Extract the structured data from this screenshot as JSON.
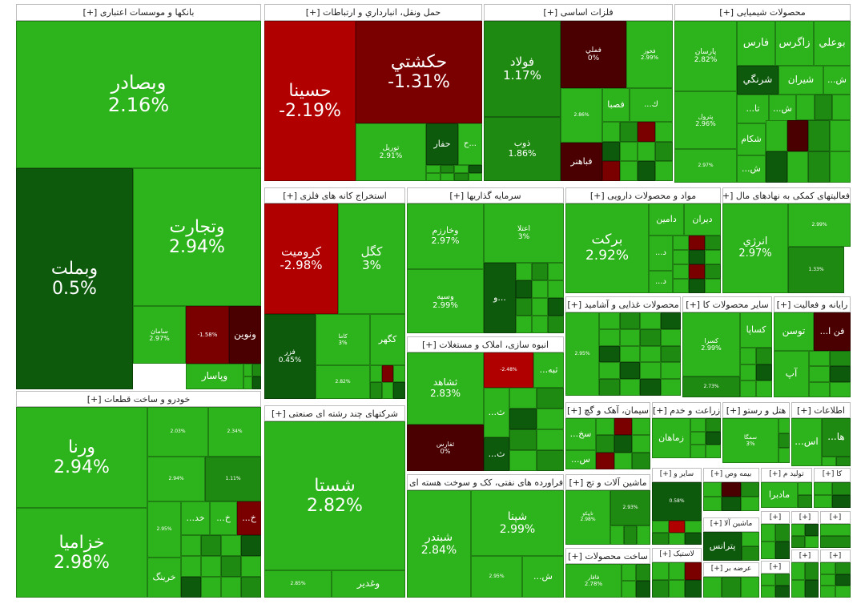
{
  "chart_data": {
    "type": "treemap",
    "title": "",
    "colors": {
      "up_strong": "#2db31b",
      "up_mid": "#1f8a12",
      "up_low": "#0d5a0d",
      "flat": "#0b4a0b",
      "down_mid": "#7a0000",
      "down_strong": "#b00000",
      "darkred": "#4a0000"
    },
    "sectors": [
      {
        "name": "بانکها و موسسات اعتباری [+]",
        "stocks": [
          {
            "name": "وبصادر",
            "change": "2.16%"
          },
          {
            "name": "وتجارت",
            "change": "2.94%"
          },
          {
            "name": "وبملت",
            "change": "0.5%"
          },
          {
            "name": "سامان",
            "change": "2.97%"
          },
          {
            "name": "ونوین",
            "change": ""
          },
          {
            "name": "",
            "change": "-1.58%"
          },
          {
            "name": "وپاسار",
            "change": ""
          }
        ]
      },
      {
        "name": "حمل ونقل، انبارداري و ارتباطات [+]",
        "stocks": [
          {
            "name": "حسينا",
            "change": "-2.19%"
          },
          {
            "name": "حكشتي",
            "change": "-1.31%"
          },
          {
            "name": "توريل",
            "change": "2.91%"
          },
          {
            "name": "حفار",
            "change": ""
          },
          {
            "name": "ح...",
            "change": ""
          }
        ]
      },
      {
        "name": "فلزات اساسی [+]",
        "stocks": [
          {
            "name": "فولاد",
            "change": "1.17%"
          },
          {
            "name": "فملي",
            "change": "0%"
          },
          {
            "name": "فخوز",
            "change": "2.99%"
          },
          {
            "name": "ذوب",
            "change": "1.86%"
          },
          {
            "name": "",
            "change": "2.86%"
          },
          {
            "name": "فصبا",
            "change": ""
          },
          {
            "name": "...ك",
            "change": ""
          },
          {
            "name": "فباهنر",
            "change": ""
          }
        ]
      },
      {
        "name": "محصولات شیمیایی [+]",
        "stocks": [
          {
            "name": "پارسان",
            "change": "2.82%"
          },
          {
            "name": "فارس",
            "change": ""
          },
          {
            "name": "زاگرس",
            "change": ""
          },
          {
            "name": "بوعلي",
            "change": ""
          },
          {
            "name": "شرنگي",
            "change": ""
          },
          {
            "name": "شيران",
            "change": ""
          },
          {
            "name": "...ش",
            "change": ""
          },
          {
            "name": "پترول",
            "change": "2.96%"
          },
          {
            "name": "...تا",
            "change": ""
          },
          {
            "name": "...ش",
            "change": ""
          },
          {
            "name": "شكام",
            "change": ""
          },
          {
            "name": "",
            "change": "2.97%"
          },
          {
            "name": "...ش",
            "change": ""
          }
        ]
      },
      {
        "name": "استخراج کانه های فلزی [+]",
        "stocks": [
          {
            "name": "كروميت",
            "change": "-2.98%"
          },
          {
            "name": "كگل",
            "change": "3%"
          },
          {
            "name": "فزر",
            "change": "0.45%"
          },
          {
            "name": "كاما",
            "change": "3%"
          },
          {
            "name": "كگهر",
            "change": ""
          },
          {
            "name": "",
            "change": "2.82%"
          }
        ]
      },
      {
        "name": "سرمایه گذاریها [+]",
        "stocks": [
          {
            "name": "وخارزم",
            "change": "2.97%"
          },
          {
            "name": "اعتلا",
            "change": "3%"
          },
          {
            "name": "وسپه",
            "change": "2.99%"
          },
          {
            "name": "و...",
            "change": ""
          }
        ]
      },
      {
        "name": "مواد و محصولات دارویی [+]",
        "stocks": [
          {
            "name": "بركت",
            "change": "2.92%"
          },
          {
            "name": "دامين",
            "change": ""
          },
          {
            "name": "ديران",
            "change": ""
          },
          {
            "name": "...د",
            "change": ""
          },
          {
            "name": "...د",
            "change": ""
          }
        ]
      },
      {
        "name": "فعالیتهای کمکی به نهادهای مال [+]",
        "stocks": [
          {
            "name": "انرژي",
            "change": "2.97%"
          },
          {
            "name": "",
            "change": "2.99%"
          },
          {
            "name": "",
            "change": "1.33%"
          }
        ]
      },
      {
        "name": "محصولات غذایی و آشامید [+]",
        "stocks": [
          {
            "name": "",
            "change": "2.95%"
          }
        ]
      },
      {
        "name": "سایر محصولات کا [+]",
        "stocks": [
          {
            "name": "كسرا",
            "change": "2.99%"
          },
          {
            "name": "كساپا",
            "change": ""
          },
          {
            "name": "",
            "change": "2.73%"
          }
        ]
      },
      {
        "name": "رایانه و فعالیت [+]",
        "stocks": [
          {
            "name": "توسن",
            "change": ""
          },
          {
            "name": "...فن ا",
            "change": ""
          },
          {
            "name": "آپ",
            "change": ""
          }
        ]
      },
      {
        "name": "انبوه سازی، املاک و مستغلات [+]",
        "stocks": [
          {
            "name": "ثشاهد",
            "change": "2.83%"
          },
          {
            "name": "",
            "change": "-2.48%"
          },
          {
            "name": "...ثبه",
            "change": ""
          },
          {
            "name": "...ث",
            "change": ""
          },
          {
            "name": "ثفارس",
            "change": "0%"
          },
          {
            "name": "...ث",
            "change": ""
          }
        ]
      },
      {
        "name": "خودرو و ساخت قطعات [+]",
        "stocks": [
          {
            "name": "ورنا",
            "change": "2.94%"
          },
          {
            "name": "خزاميا",
            "change": "2.98%"
          },
          {
            "name": "",
            "change": "2.03%"
          },
          {
            "name": "",
            "change": "2.34%"
          },
          {
            "name": "",
            "change": "2.94%"
          },
          {
            "name": "",
            "change": "1.11%"
          },
          {
            "name": "",
            "change": "2.95%"
          },
          {
            "name": "...خد",
            "change": ""
          },
          {
            "name": "...خ",
            "change": ""
          },
          {
            "name": "...خ",
            "change": ""
          },
          {
            "name": "خرينگ",
            "change": ""
          }
        ]
      },
      {
        "name": "شرکتهای چند رشته ای صنعتی [+]",
        "stocks": [
          {
            "name": "شستا",
            "change": "2.82%"
          },
          {
            "name": "",
            "change": "2.85%"
          },
          {
            "name": "وغدير",
            "change": ""
          }
        ]
      },
      {
        "name": "فراورده های نفتی، کک و سوخت هسته ای [+]",
        "stocks": [
          {
            "name": "شبندر",
            "change": "2.84%"
          },
          {
            "name": "شپنا",
            "change": "2.99%"
          },
          {
            "name": "",
            "change": "2.95%"
          },
          {
            "name": "...ش",
            "change": ""
          }
        ]
      },
      {
        "name": "سیمان، آهک و گچ [+]",
        "stocks": [
          {
            "name": "...سخ",
            "change": ""
          },
          {
            "name": "...س",
            "change": ""
          }
        ]
      },
      {
        "name": "زراعت و خدم [+]",
        "stocks": [
          {
            "name": "زماهان",
            "change": ""
          }
        ]
      },
      {
        "name": "هتل و رستو [+]",
        "stocks": [
          {
            "name": "سمگا",
            "change": "3%"
          }
        ]
      },
      {
        "name": "اطلاعات [+]",
        "stocks": [
          {
            "name": "...اس",
            "change": ""
          },
          {
            "name": "...ها",
            "change": ""
          }
        ]
      },
      {
        "name": "ماشین آلات و تج [+]",
        "stocks": [
          {
            "name": "تاپيكو",
            "change": "2.98%"
          },
          {
            "name": "",
            "change": "2.93%"
          }
        ]
      },
      {
        "name": "سایر و [+]",
        "stocks": [
          {
            "name": "",
            "change": "0.58%"
          }
        ]
      },
      {
        "name": "بیمه وص [+]",
        "stocks": []
      },
      {
        "name": "تولید م [+]",
        "stocks": [
          {
            "name": "مادبرا",
            "change": ""
          }
        ]
      },
      {
        "name": "کا [+]",
        "stocks": []
      },
      {
        "name": "ماشین آلا [+]",
        "stocks": [
          {
            "name": "پترانس",
            "change": ""
          }
        ]
      },
      {
        "name": "ساخت محصولات [+]",
        "stocks": [
          {
            "name": "فافار",
            "change": "2.78%"
          }
        ]
      },
      {
        "name": "لاستیک [+]",
        "stocks": []
      },
      {
        "name": "عرضه بر [+]",
        "stocks": []
      },
      {
        "name": "[+]",
        "stocks": []
      }
    ]
  }
}
